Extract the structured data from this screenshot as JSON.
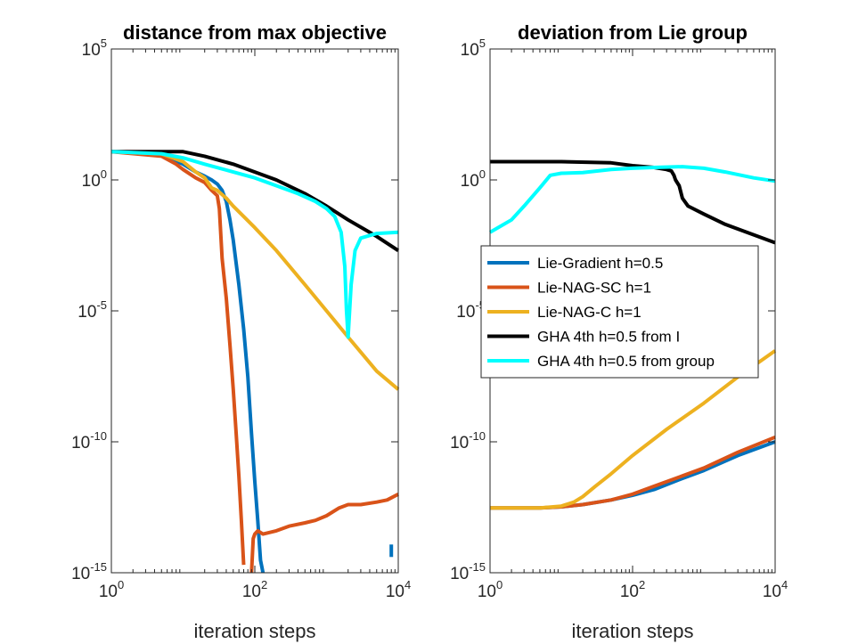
{
  "chart_data": [
    {
      "type": "line",
      "title": "distance from max objective",
      "xlabel": "iteration steps",
      "ylabel": "",
      "xscale": "log",
      "yscale": "log",
      "xlim": [
        1,
        10000
      ],
      "ylim": [
        1e-15,
        100000
      ],
      "xticks": [
        {
          "base": "10",
          "exp": "0"
        },
        {
          "base": "10",
          "exp": "2"
        },
        {
          "base": "10",
          "exp": "4"
        }
      ],
      "yticks": [
        {
          "value": 100000.0,
          "base": "10",
          "exp": "5"
        },
        {
          "value": 1,
          "base": "10",
          "exp": "0"
        },
        {
          "value": 1e-05,
          "base": "10",
          "exp": "-5"
        },
        {
          "value": 1e-10,
          "base": "10",
          "exp": "-10"
        },
        {
          "value": 1e-15,
          "base": "10",
          "exp": "-15"
        }
      ],
      "series": [
        {
          "name": "Lie-Gradient h=0.5",
          "color": "#0072BD",
          "x": [
            1,
            5,
            10,
            15,
            20,
            25,
            30,
            35,
            40,
            45,
            50,
            60,
            70,
            80,
            90,
            100,
            110,
            120,
            130
          ],
          "y": [
            12,
            9,
            4,
            2,
            1.4,
            1.0,
            0.7,
            0.4,
            0.15,
            0.03,
            0.005,
            0.0001,
            2e-06,
            3e-08,
            2e-10,
            3e-12,
            1e-13,
            3e-15,
            1e-15
          ]
        },
        {
          "name": "Lie-Gradient h=0.5 (floor)",
          "color": "#0072BD",
          "x": [
            8000,
            8000
          ],
          "y": [
            4e-15,
            1.2e-14
          ]
        },
        {
          "name": "Lie-NAG-SC h=1",
          "color": "#D95319",
          "x": [
            1,
            5,
            8,
            10,
            15,
            20,
            25,
            30,
            32,
            35,
            40,
            45,
            50,
            55,
            60,
            65,
            70
          ],
          "y": [
            12,
            8,
            4,
            2.5,
            1.2,
            0.8,
            0.4,
            0.25,
            0.08,
            0.001,
            3e-05,
            5e-07,
            1e-08,
            2e-10,
            5e-12,
            1e-13,
            2e-15
          ]
        },
        {
          "name": "Lie-NAG-SC h=1 (floor)",
          "color": "#D95319",
          "x": [
            90,
            95,
            100,
            110,
            130,
            200,
            300,
            500,
            700,
            1000,
            1500,
            2000,
            3000,
            5000,
            7000,
            10000
          ],
          "y": [
            1e-15,
            2e-14,
            3e-14,
            4e-14,
            3e-14,
            4e-14,
            6e-14,
            8e-14,
            1e-13,
            1.5e-13,
            3e-13,
            4e-13,
            4e-13,
            5e-13,
            6e-13,
            1e-12
          ]
        },
        {
          "name": "Lie-NAG-C h=1",
          "color": "#EDB120",
          "x": [
            1,
            5,
            10,
            15,
            20,
            25,
            30,
            40,
            50,
            70,
            100,
            200,
            500,
            1000,
            2000,
            5000,
            10000
          ],
          "y": [
            12,
            10,
            5,
            2,
            1.2,
            0.5,
            0.4,
            0.2,
            0.1,
            0.04,
            0.015,
            0.002,
            0.0001,
            1e-05,
            1e-06,
            5e-08,
            1e-08
          ]
        },
        {
          "name": "GHA 4th h=0.5 from I",
          "color": "#000000",
          "x": [
            1,
            10,
            20,
            50,
            100,
            200,
            500,
            1000,
            2000,
            5000,
            10000
          ],
          "y": [
            12,
            12,
            8,
            4,
            2,
            1,
            0.3,
            0.1,
            0.03,
            0.007,
            0.002
          ]
        },
        {
          "name": "GHA 4th h=0.5 from group",
          "color": "#00FFFF",
          "x": [
            1,
            5,
            10,
            20,
            50,
            100,
            200,
            400,
            700,
            1000,
            1300,
            1600,
            1800,
            1900,
            2000,
            2100,
            2200,
            2500,
            3000,
            5000,
            10000
          ],
          "y": [
            12,
            10,
            7,
            4,
            2,
            1.2,
            0.6,
            0.3,
            0.15,
            0.08,
            0.04,
            0.01,
            0.0005,
            1e-05,
            1e-06,
            1e-05,
            0.0001,
            0.002,
            0.006,
            0.009,
            0.01
          ]
        }
      ]
    },
    {
      "type": "line",
      "title": "deviation from Lie group",
      "xlabel": "iteration steps",
      "ylabel": "",
      "xscale": "log",
      "yscale": "log",
      "xlim": [
        1,
        10000
      ],
      "ylim": [
        1e-15,
        100000
      ],
      "xticks": [
        {
          "base": "10",
          "exp": "0"
        },
        {
          "base": "10",
          "exp": "2"
        },
        {
          "base": "10",
          "exp": "4"
        }
      ],
      "yticks": [
        {
          "value": 100000.0,
          "base": "10",
          "exp": "5"
        },
        {
          "value": 1,
          "base": "10",
          "exp": "0"
        },
        {
          "value": 1e-05,
          "base": "10",
          "exp": "-5"
        },
        {
          "value": 1e-10,
          "base": "10",
          "exp": "-10"
        },
        {
          "value": 1e-15,
          "base": "10",
          "exp": "-15"
        }
      ],
      "legend": {
        "position": "center-right",
        "entries": [
          {
            "label": "Lie-Gradient h=0.5",
            "color": "#0072BD"
          },
          {
            "label": "Lie-NAG-SC h=1",
            "color": "#D95319"
          },
          {
            "label": "Lie-NAG-C h=1",
            "color": "#EDB120"
          },
          {
            "label": "GHA 4th h=0.5 from I",
            "color": "#000000"
          },
          {
            "label": "GHA 4th h=0.5 from group",
            "color": "#00FFFF"
          }
        ]
      },
      "series": [
        {
          "name": "Lie-Gradient h=0.5",
          "color": "#0072BD",
          "x": [
            1,
            5,
            10,
            20,
            50,
            100,
            200,
            500,
            1000,
            3000,
            10000
          ],
          "y": [
            3e-13,
            3e-13,
            3.3e-13,
            4e-13,
            6e-13,
            9e-13,
            1.5e-12,
            4e-12,
            8e-12,
            3e-11,
            1e-10
          ]
        },
        {
          "name": "Lie-NAG-SC h=1",
          "color": "#D95319",
          "x": [
            1,
            5,
            10,
            20,
            50,
            100,
            200,
            500,
            1000,
            3000,
            10000
          ],
          "y": [
            3e-13,
            3e-13,
            3.3e-13,
            4e-13,
            6e-13,
            1e-12,
            2e-12,
            5e-12,
            1e-11,
            4e-11,
            1.5e-10
          ]
        },
        {
          "name": "Lie-NAG-C h=1",
          "color": "#EDB120",
          "x": [
            1,
            5,
            10,
            15,
            20,
            30,
            50,
            100,
            300,
            1000,
            3000,
            10000
          ],
          "y": [
            3e-13,
            3e-13,
            3.5e-13,
            5e-13,
            8e-13,
            2e-12,
            6e-12,
            3e-11,
            3e-10,
            3e-09,
            3e-08,
            3e-07
          ]
        },
        {
          "name": "GHA 4th h=0.5 from I",
          "color": "#000000",
          "x": [
            1,
            10,
            50,
            100,
            200,
            300,
            350,
            380,
            400,
            450,
            500,
            600,
            1000,
            2000,
            5000,
            10000
          ],
          "y": [
            5,
            5,
            4.5,
            3.5,
            3,
            2.5,
            2.2,
            1.5,
            1,
            0.6,
            0.2,
            0.1,
            0.05,
            0.02,
            0.008,
            0.004
          ]
        },
        {
          "name": "GHA 4th h=0.5 from group",
          "color": "#00FFFF",
          "x": [
            1,
            2,
            3,
            5,
            7,
            10,
            20,
            50,
            100,
            200,
            500,
            1000,
            2000,
            5000,
            10000
          ],
          "y": [
            0.01,
            0.03,
            0.1,
            0.5,
            1.5,
            1.8,
            1.9,
            2.5,
            2.8,
            3,
            3.2,
            2.8,
            2,
            1.2,
            0.9
          ]
        }
      ]
    }
  ]
}
